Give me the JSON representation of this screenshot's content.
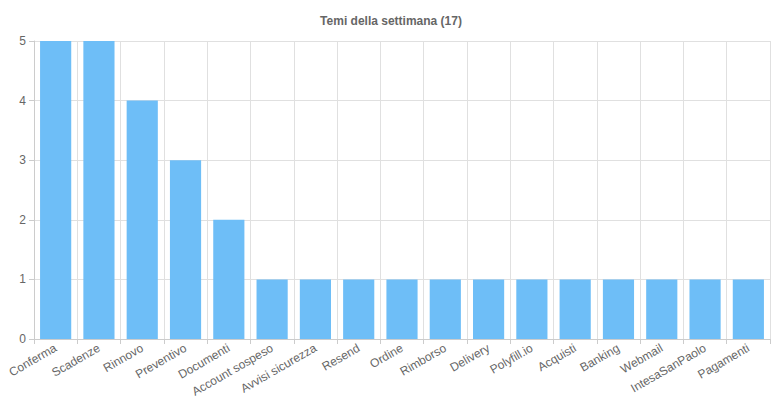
{
  "chart_data": {
    "type": "bar",
    "title": "Temi della settimana (17)",
    "categories": [
      "Conferma",
      "Scadenze",
      "Rinnovo",
      "Preventivo",
      "Documenti",
      "Account sospeso",
      "Avvisi sicurezza",
      "Resend",
      "Ordine",
      "Rimborso",
      "Delivery",
      "Polyfill.io",
      "Acquisti",
      "Banking",
      "Webmail",
      "IntesaSanPaolo",
      "Pagamenti"
    ],
    "values": [
      5,
      5,
      4,
      3,
      2,
      1,
      1,
      1,
      1,
      1,
      1,
      1,
      1,
      1,
      1,
      1,
      1
    ],
    "color": "#6ebef7",
    "ylim": [
      0,
      5
    ],
    "yticks": [
      0,
      1,
      2,
      3,
      4,
      5
    ],
    "grid": true
  }
}
